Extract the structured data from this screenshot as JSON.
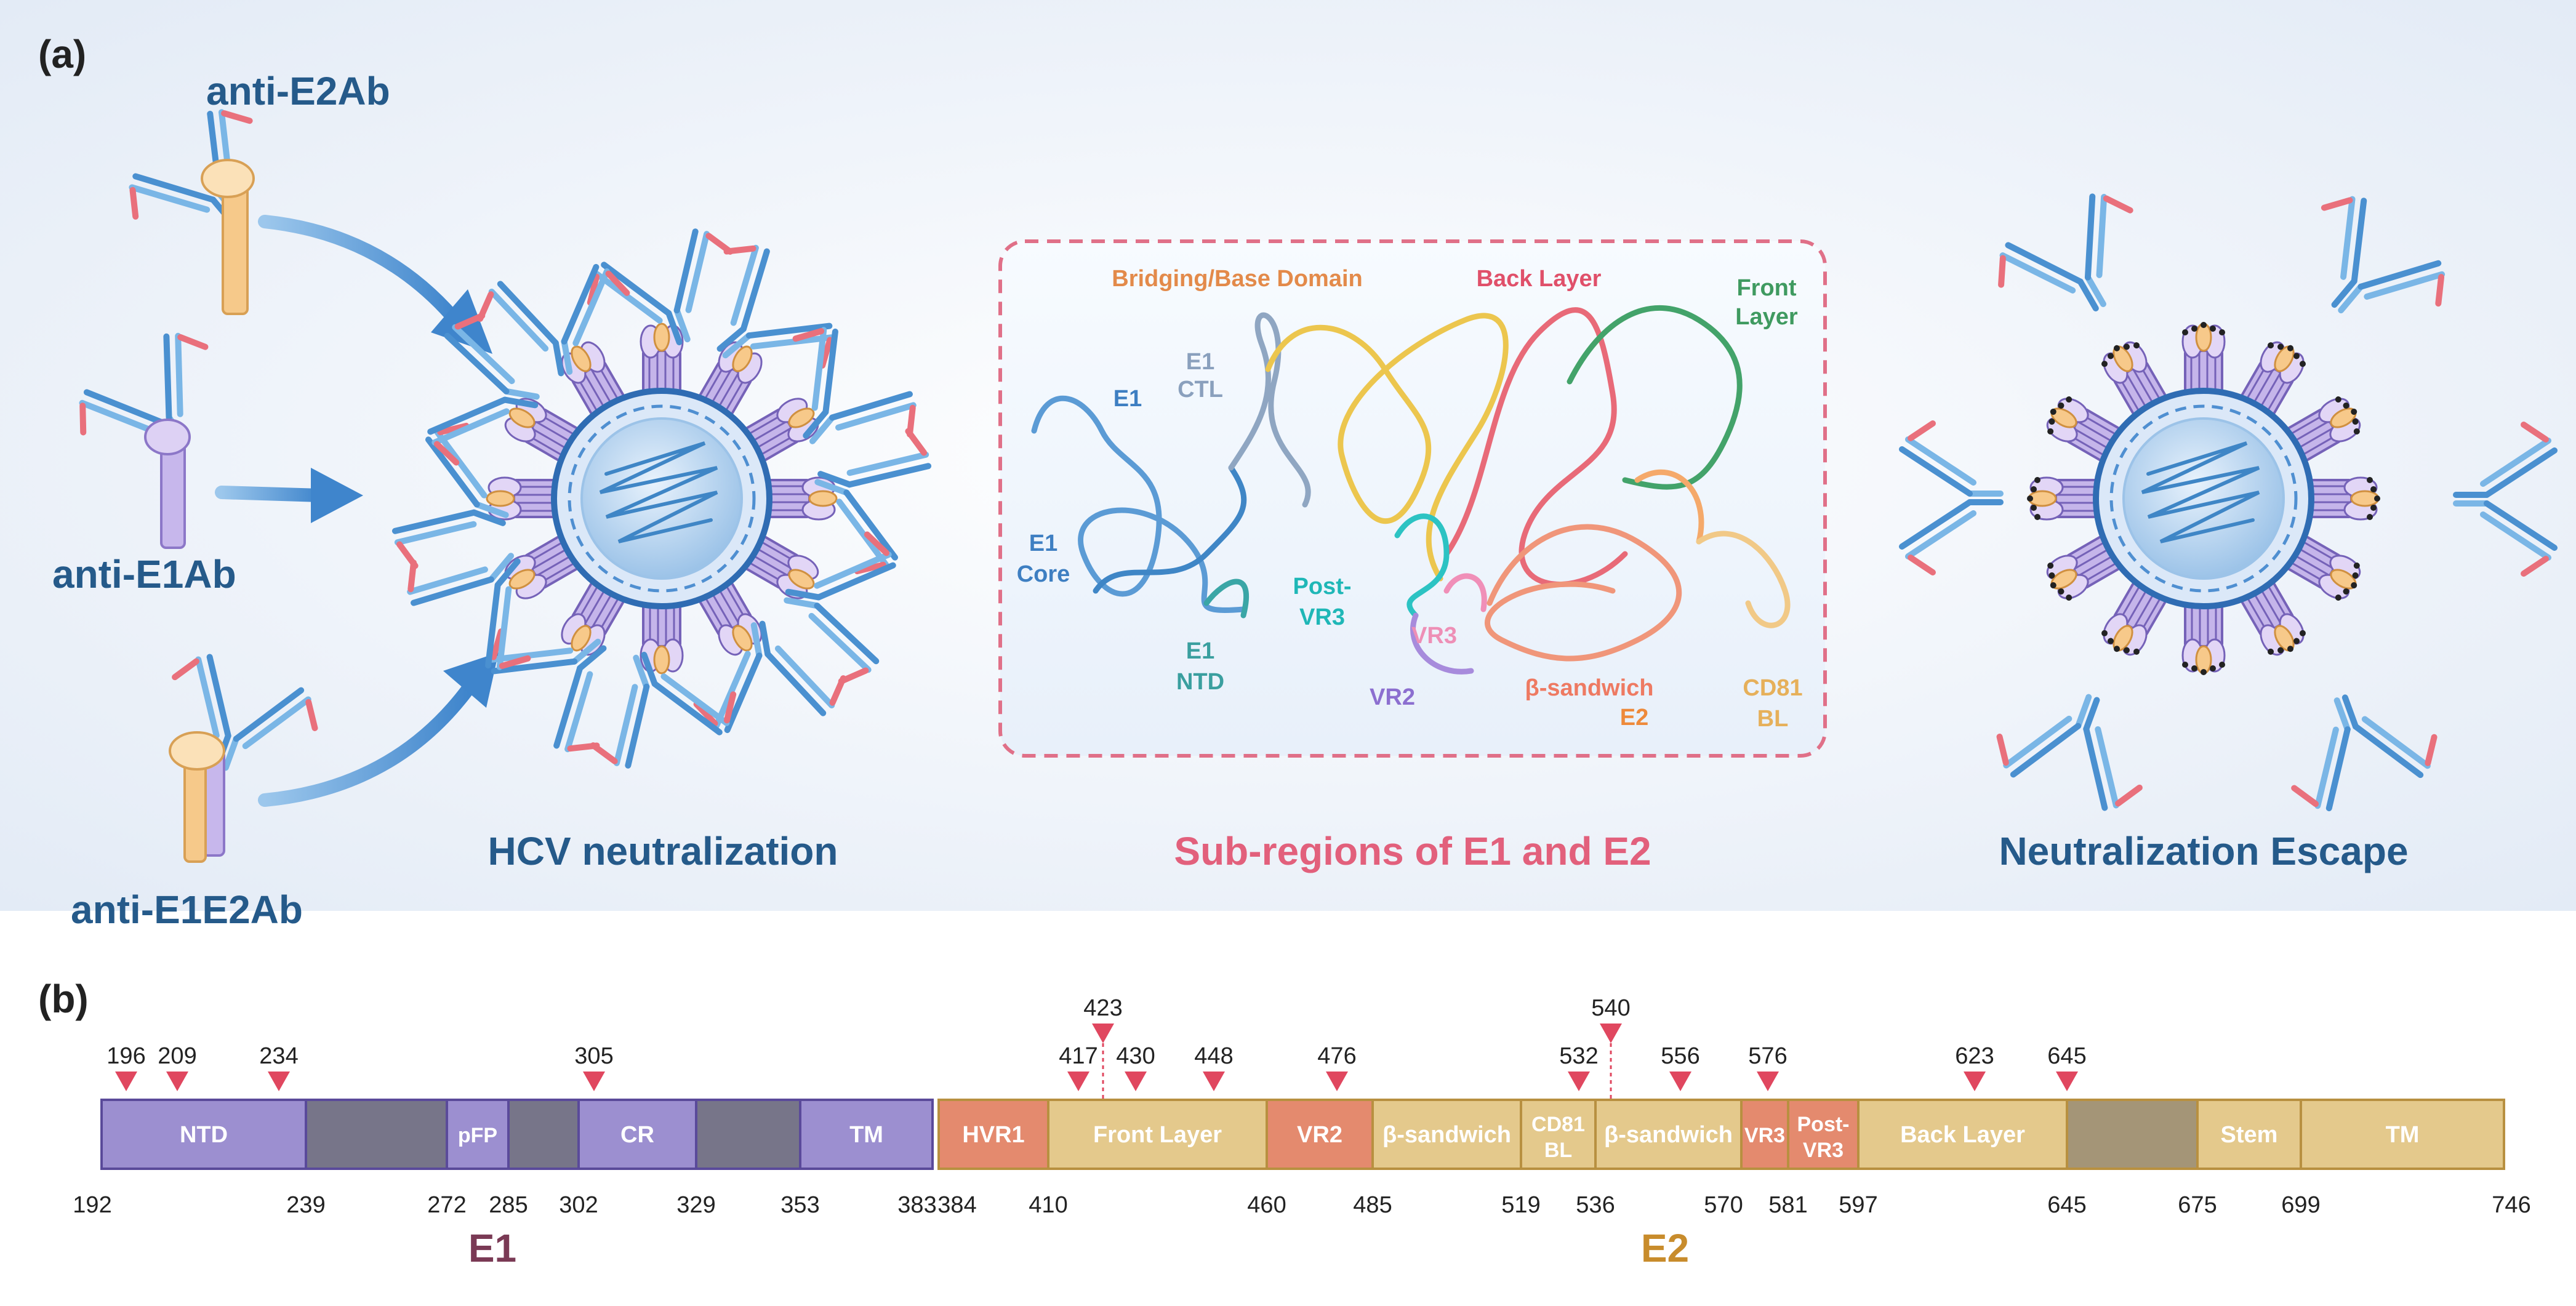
{
  "panel_a": {
    "label": "(a)",
    "antibodies": {
      "anti_e2": "anti-E2Ab",
      "anti_e1": "anti-E1Ab",
      "anti_e1e2": "anti-E1E2Ab"
    },
    "captions": {
      "neutralization": "HCV neutralization",
      "subregions": "Sub-regions of E1 and E2",
      "escape": "Neutralization Escape"
    },
    "structure_labels": {
      "bridging": "Bridging/Base Domain",
      "back_layer": "Back Layer",
      "front_layer_1": "Front",
      "front_layer_2": "Layer",
      "e1": "E1",
      "e1_ctl_1": "E1",
      "e1_ctl_2": "CTL",
      "e1_core_1": "E1",
      "e1_core_2": "Core",
      "e1_ntd_1": "E1",
      "e1_ntd_2": "NTD",
      "post_vr3_1": "Post-",
      "post_vr3_2": "VR3",
      "vr3": "VR3",
      "vr2": "VR2",
      "beta_sandwich": "β-sandwich",
      "e2": "E2",
      "cd81_bl_1": "CD81",
      "cd81_bl_2": "BL"
    }
  },
  "panel_b": {
    "label": "(b)",
    "protein_labels": {
      "e1": "E1",
      "e2": "E2"
    },
    "colors": {
      "e1_domain": "#9c8fd0",
      "e1_gap": "#777589",
      "e2_domain": "#e4c98c",
      "e2_hvr": "#e48a6e",
      "e2_gap": "#a49577",
      "marker": "#e0475f",
      "e1_label": "#7a3a55",
      "e2_label": "#c88c2c"
    },
    "segments": [
      {
        "label": "NTD",
        "kind": "e1"
      },
      {
        "label": "",
        "kind": "e1gap"
      },
      {
        "label": "pFP",
        "kind": "e1"
      },
      {
        "label": "",
        "kind": "e1gap"
      },
      {
        "label": "CR",
        "kind": "e1"
      },
      {
        "label": "",
        "kind": "e1gap"
      },
      {
        "label": "TM",
        "kind": "e1"
      },
      {
        "label": "HVR1",
        "kind": "hvr"
      },
      {
        "label": "Front Layer",
        "kind": "e2"
      },
      {
        "label": "VR2",
        "kind": "hvr"
      },
      {
        "label": "β-sandwich",
        "kind": "e2"
      },
      {
        "label": "CD81 BL",
        "kind": "e2"
      },
      {
        "label": "β-sandwich",
        "kind": "e2"
      },
      {
        "label": "VR3",
        "kind": "hvr"
      },
      {
        "label": "Post-VR3",
        "kind": "hvr"
      },
      {
        "label": "Back Layer",
        "kind": "e2"
      },
      {
        "label": "",
        "kind": "e2gap"
      },
      {
        "label": "Stem",
        "kind": "e2"
      },
      {
        "label": "TM",
        "kind": "e2"
      }
    ],
    "boundary_numbers": [
      "192",
      "239",
      "272",
      "285",
      "302",
      "329",
      "353",
      "383",
      "384",
      "410",
      "460",
      "485",
      "519",
      "536",
      "570",
      "581",
      "597",
      "645",
      "675",
      "699",
      "746"
    ],
    "markers": [
      "196",
      "209",
      "234",
      "305",
      "417",
      "423",
      "430",
      "448",
      "476",
      "532",
      "540",
      "556",
      "576",
      "623",
      "645"
    ]
  }
}
